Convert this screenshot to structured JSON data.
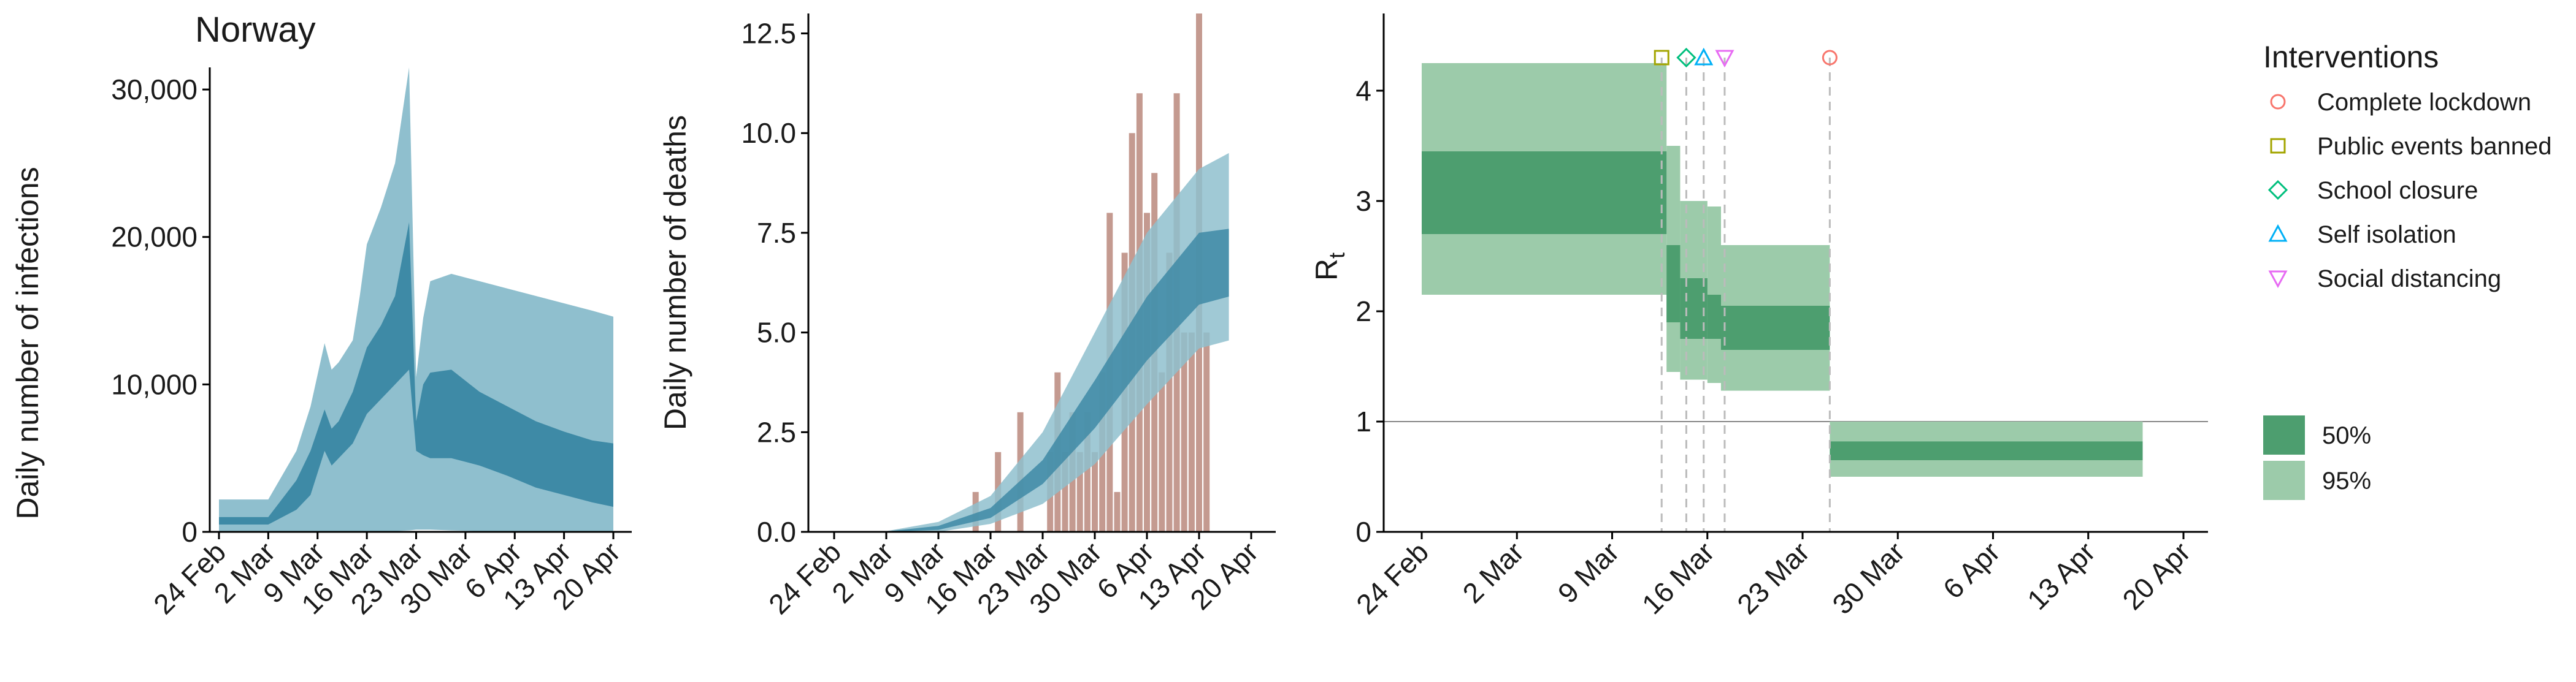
{
  "colors": {
    "band_light": "#8fbfce",
    "band_dark": "#3e8aa6",
    "bars": "#c49a90",
    "rt_light": "#9ccbaa",
    "rt_dark": "#4d9e6f",
    "axis": "#000000"
  },
  "chart_data": [
    {
      "type": "area",
      "title": "Norway",
      "ylabel": "Daily number of infections",
      "xlabel": "",
      "x_ticks": [
        "24 Feb",
        "2 Mar",
        "9 Mar",
        "16 Mar",
        "23 Mar",
        "30 Mar",
        "6 Apr",
        "13 Apr",
        "20 Apr"
      ],
      "y_ticks": [
        "0",
        "10,000",
        "20,000",
        "30,000"
      ],
      "ylim": [
        0,
        31500
      ],
      "xlim": [
        "2020-02-24",
        "2020-04-20"
      ],
      "x": [
        "2020-02-24",
        "2020-02-28",
        "2020-03-02",
        "2020-03-06",
        "2020-03-08",
        "2020-03-10",
        "2020-03-11",
        "2020-03-12",
        "2020-03-14",
        "2020-03-15",
        "2020-03-16",
        "2020-03-18",
        "2020-03-20",
        "2020-03-22",
        "2020-03-23",
        "2020-03-24",
        "2020-03-25",
        "2020-03-28",
        "2020-04-01",
        "2020-04-05",
        "2020-04-09",
        "2020-04-13",
        "2020-04-17",
        "2020-04-20"
      ],
      "series": [
        {
          "band": "95%",
          "lower": [
            0,
            0,
            0,
            0,
            0,
            0,
            0,
            0,
            0,
            0,
            0,
            50,
            50,
            100,
            150,
            150,
            150,
            100,
            50,
            0,
            0,
            0,
            0,
            0
          ],
          "upper": [
            2200,
            2200,
            2200,
            5500,
            8500,
            12800,
            11000,
            11500,
            13000,
            16000,
            19500,
            22000,
            25000,
            31500,
            10500,
            14500,
            17000,
            17500,
            17000,
            16500,
            16000,
            15500,
            15000,
            14600
          ]
        },
        {
          "band": "50%",
          "lower": [
            500,
            500,
            500,
            1500,
            2500,
            5500,
            4500,
            5000,
            6000,
            7000,
            8000,
            9000,
            10000,
            11000,
            5500,
            5200,
            5000,
            5000,
            4500,
            3800,
            3000,
            2500,
            2000,
            1700
          ],
          "upper": [
            1000,
            1000,
            1000,
            3500,
            5500,
            8300,
            7000,
            7500,
            9500,
            11000,
            12500,
            14000,
            16000,
            21000,
            7500,
            10000,
            10800,
            11000,
            9500,
            8500,
            7500,
            6800,
            6200,
            6000
          ]
        }
      ]
    },
    {
      "type": "bar",
      "title": "",
      "ylabel": "Daily number of deaths",
      "xlabel": "",
      "x_ticks": [
        "24 Feb",
        "2 Mar",
        "9 Mar",
        "16 Mar",
        "23 Mar",
        "30 Mar",
        "6 Apr",
        "13 Apr",
        "20 Apr"
      ],
      "y_ticks": [
        "0.0",
        "2.5",
        "5.0",
        "7.5",
        "10.0",
        "12.5"
      ],
      "ylim": [
        0,
        13
      ],
      "xlim": [
        "2020-02-24",
        "2020-04-20"
      ],
      "deaths_start": "2020-03-14",
      "deaths": [
        1,
        0,
        0,
        2,
        0,
        0,
        3,
        0,
        0,
        0,
        2,
        4,
        2,
        3,
        2,
        3,
        2,
        4,
        8,
        1,
        7,
        10,
        11,
        8,
        9,
        4,
        7,
        11,
        5,
        5,
        13,
        5
      ],
      "fit_x": [
        "2020-02-24",
        "2020-03-02",
        "2020-03-09",
        "2020-03-16",
        "2020-03-23",
        "2020-03-30",
        "2020-04-06",
        "2020-04-13",
        "2020-04-17"
      ],
      "series": [
        {
          "band": "95%",
          "lower": [
            0,
            0,
            0,
            0.2,
            0.7,
            1.7,
            3.2,
            4.6,
            4.8
          ],
          "upper": [
            0,
            0.02,
            0.25,
            0.9,
            2.5,
            5.0,
            7.5,
            9.1,
            9.5
          ]
        },
        {
          "band": "50%",
          "lower": [
            0,
            0,
            0.05,
            0.35,
            1.2,
            2.6,
            4.3,
            5.7,
            5.9
          ],
          "upper": [
            0,
            0.01,
            0.15,
            0.6,
            1.8,
            3.8,
            5.9,
            7.5,
            7.6
          ]
        }
      ]
    },
    {
      "type": "area",
      "title": "",
      "ylabel": "R",
      "ylabel_sub": "t",
      "xlabel": "",
      "x_ticks": [
        "24 Feb",
        "2 Mar",
        "9 Mar",
        "16 Mar",
        "23 Mar",
        "30 Mar",
        "6 Apr",
        "13 Apr",
        "20 Apr"
      ],
      "y_ticks": [
        "0",
        "1",
        "2",
        "3",
        "4"
      ],
      "ylim": [
        0,
        4.7
      ],
      "xlim": [
        "2020-02-24",
        "2020-04-20"
      ],
      "reference_line": 1,
      "steps": [
        {
          "from": "2020-02-24",
          "to": "2020-03-13",
          "lo95": 2.15,
          "hi95": 4.25,
          "lo50": 2.7,
          "hi50": 3.45
        },
        {
          "from": "2020-03-13",
          "to": "2020-03-14",
          "lo95": 1.45,
          "hi95": 3.5,
          "lo50": 1.9,
          "hi50": 2.6
        },
        {
          "from": "2020-03-14",
          "to": "2020-03-16",
          "lo95": 1.38,
          "hi95": 3.0,
          "lo50": 1.75,
          "hi50": 2.3
        },
        {
          "from": "2020-03-16",
          "to": "2020-03-17",
          "lo95": 1.35,
          "hi95": 2.95,
          "lo50": 1.75,
          "hi50": 2.15
        },
        {
          "from": "2020-03-17",
          "to": "2020-03-25",
          "lo95": 1.28,
          "hi95": 2.6,
          "lo50": 1.65,
          "hi50": 2.05
        },
        {
          "from": "2020-03-25",
          "to": "2020-04-17",
          "lo95": 0.5,
          "hi95": 1.0,
          "lo50": 0.65,
          "hi50": 0.82
        }
      ],
      "interventions": [
        {
          "name": "Complete lockdown",
          "date": "2020-03-25",
          "marker": "circle",
          "color": "#f8766d"
        },
        {
          "name": "Public events banned",
          "date": "2020-03-13",
          "marker": "square",
          "color": "#a3a500"
        },
        {
          "name": "School closure",
          "date": "2020-03-14",
          "marker": "diamond",
          "color": "#00bf7d"
        },
        {
          "name": "Self isolation",
          "date": "2020-03-16",
          "marker": "triangle-up",
          "color": "#00b0f6"
        },
        {
          "name": "Social distancing",
          "date": "2020-03-17",
          "marker": "triangle-down",
          "color": "#e76bf3"
        }
      ],
      "legend": {
        "title": "Interventions",
        "bands": [
          {
            "label": "50%",
            "color": "#4d9e6f"
          },
          {
            "label": "95%",
            "color": "#9ccbaa"
          }
        ]
      }
    }
  ]
}
